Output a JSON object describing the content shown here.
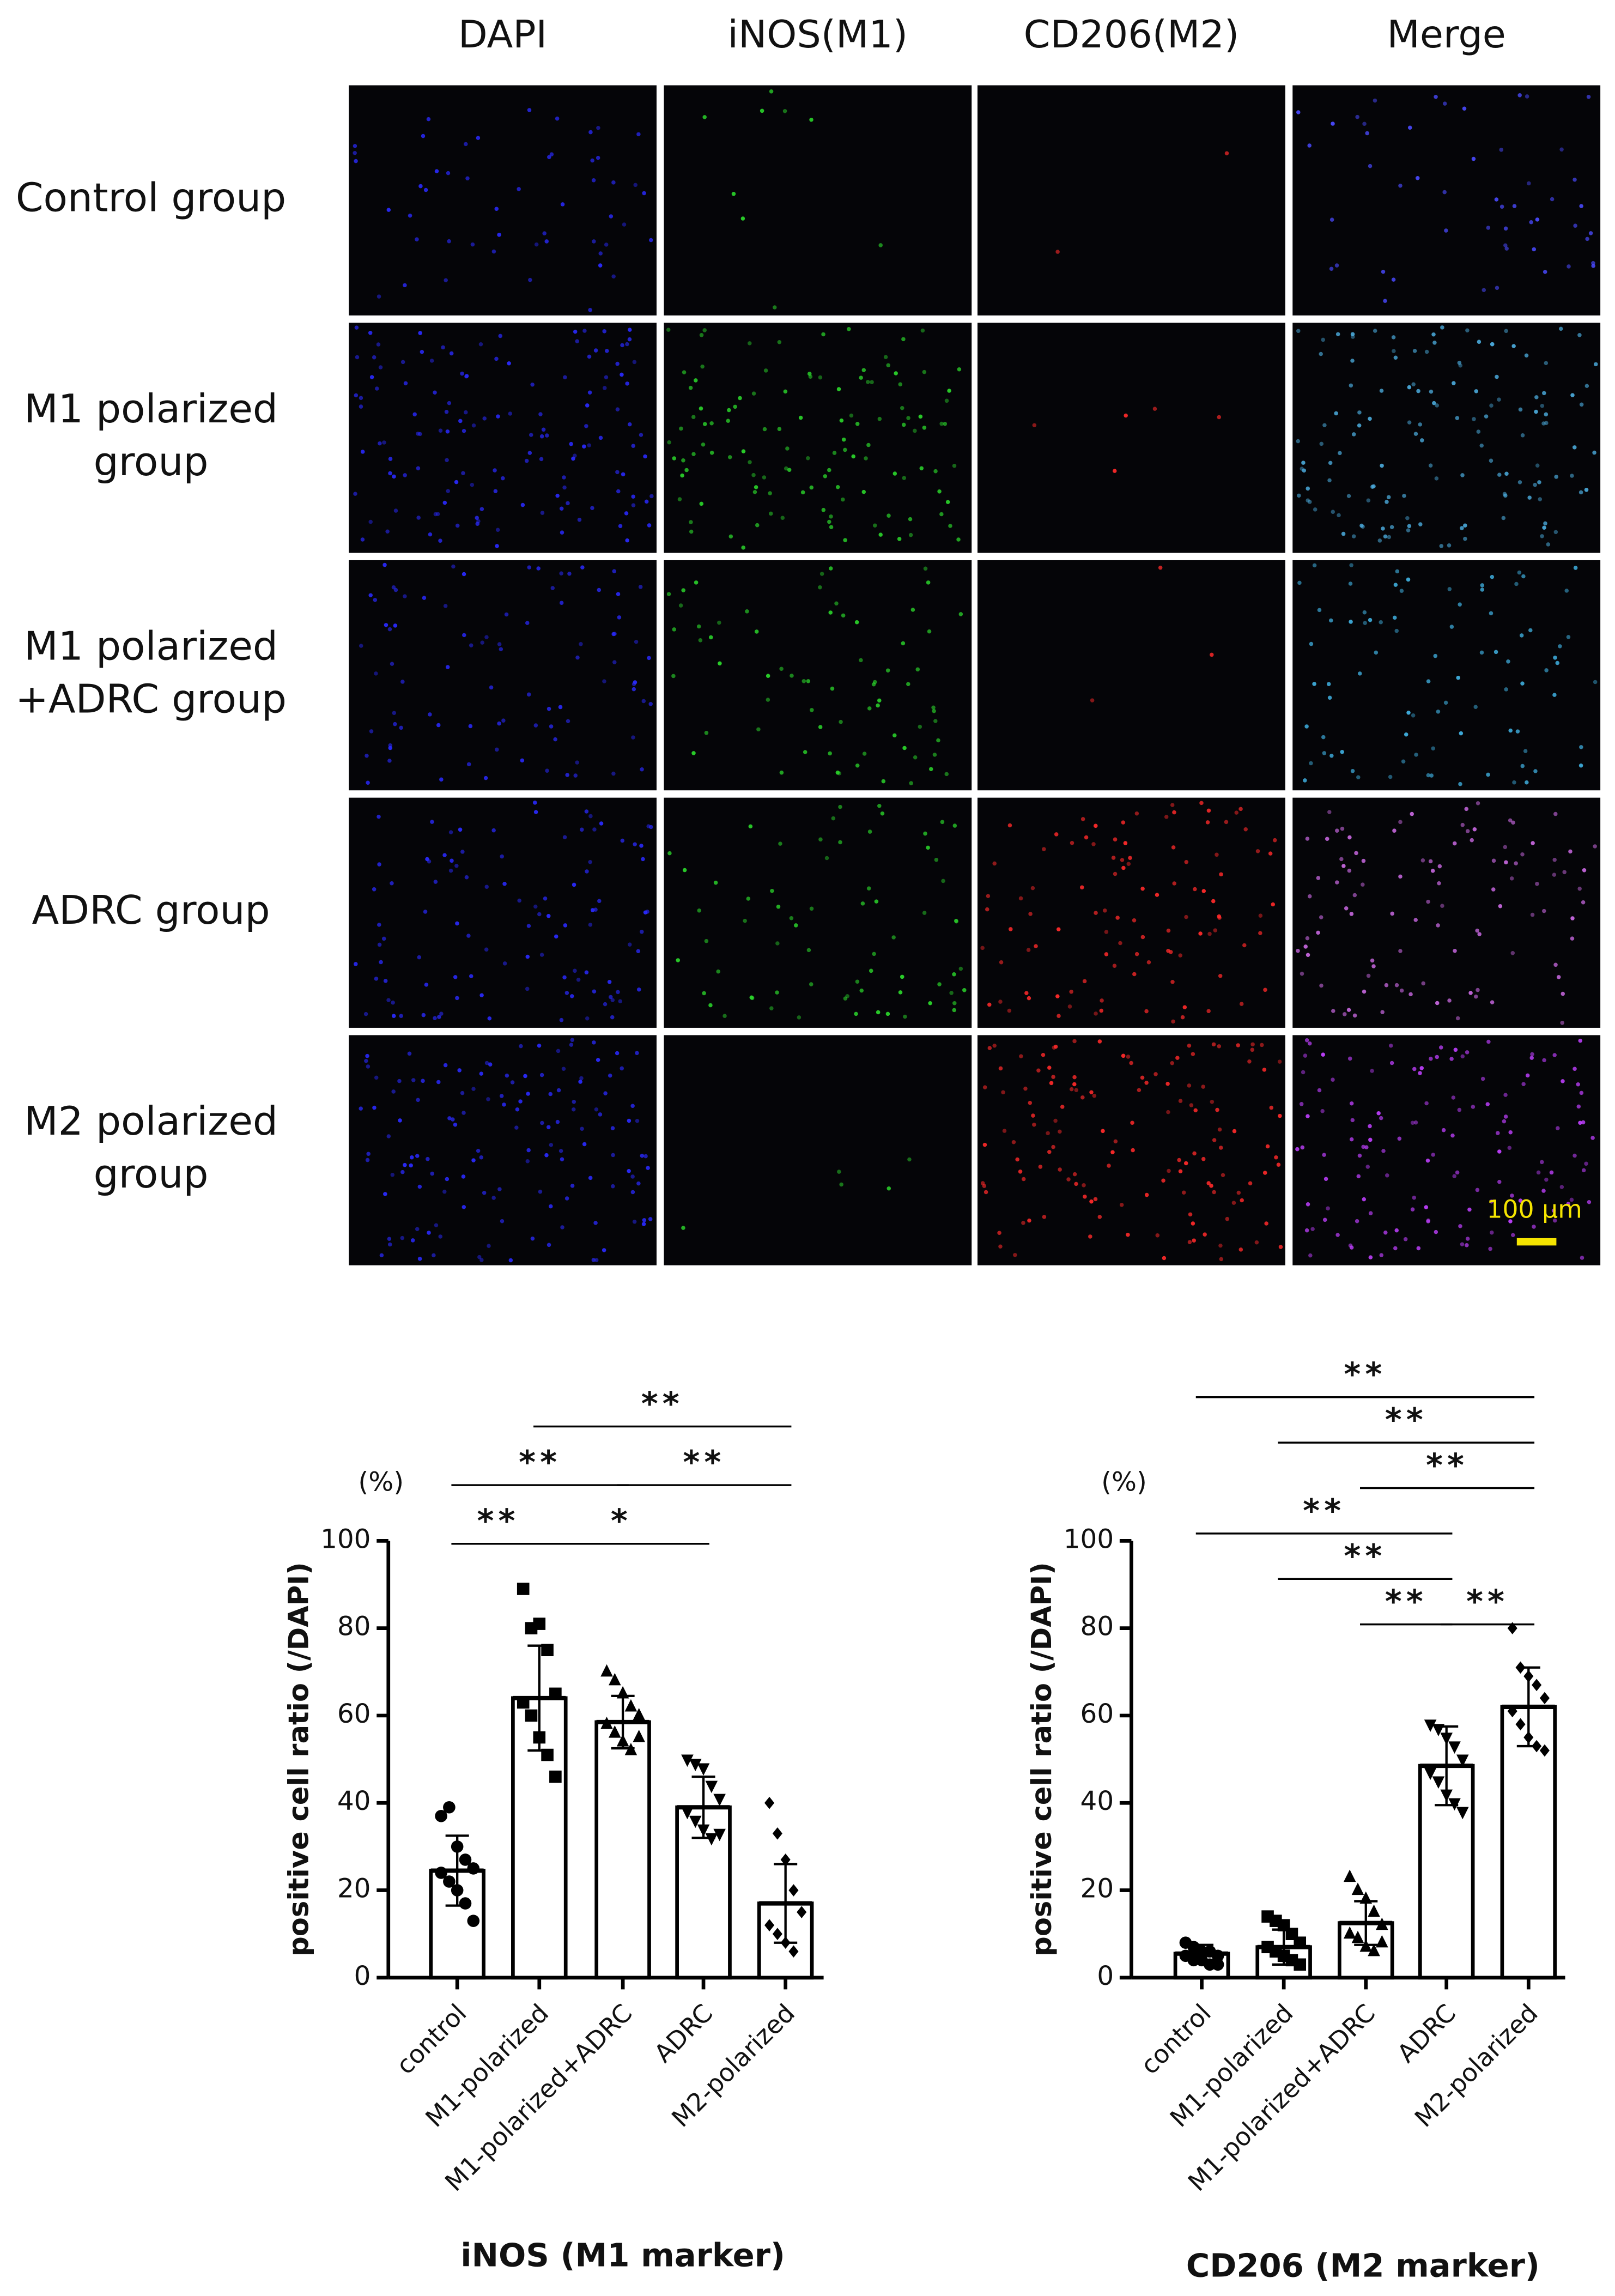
{
  "micrograph": {
    "columns": [
      "DAPI",
      "iNOS(M1)",
      "CD206(M2)",
      "Merge"
    ],
    "rows": [
      {
        "lines": [
          "Control group"
        ]
      },
      {
        "lines": [
          "M1 polarized",
          "group"
        ]
      },
      {
        "lines": [
          "M1 polarized",
          "+ADRC group"
        ]
      },
      {
        "lines": [
          "ADRC group"
        ]
      },
      {
        "lines": [
          "M2 polarized",
          "group"
        ]
      }
    ],
    "scale_bar": "100 μm"
  },
  "chart_data": [
    {
      "type": "bar",
      "title": "iNOS (M1 marker)",
      "unit": "(%)",
      "ylabel": "positive cell ratio (/DAPI)",
      "categories": [
        "control",
        "M1-polarized",
        "M1-polarized+ADRC",
        "ADRC",
        "M2-polarized"
      ],
      "values": [
        24.5,
        64,
        58.5,
        39,
        17
      ],
      "errors": [
        8,
        12,
        6,
        7,
        9
      ],
      "points": [
        [
          37,
          39,
          30,
          27,
          25,
          24,
          22,
          20,
          17,
          13
        ],
        [
          89,
          80,
          81,
          75,
          65,
          63,
          60,
          55,
          51,
          46
        ],
        [
          70,
          68,
          65,
          62,
          60,
          58,
          56,
          54,
          52,
          55
        ],
        [
          50,
          49,
          48,
          44,
          41,
          38,
          36,
          34,
          32,
          33
        ],
        [
          40,
          33,
          27,
          20,
          15,
          12,
          10,
          8,
          6
        ]
      ],
      "color": "#ffffff",
      "ylim": [
        0,
        100
      ],
      "yticks": [
        0,
        20,
        40,
        60,
        80,
        100
      ],
      "comparisons": [
        {
          "pair": [
            0,
            1
          ],
          "label": "**"
        },
        {
          "pair": [
            1,
            3
          ],
          "label": "*"
        },
        {
          "pair": [
            0,
            2
          ],
          "label": "**"
        },
        {
          "pair": [
            2,
            4
          ],
          "label": "**"
        },
        {
          "pair": [
            1,
            4
          ],
          "label": "**"
        }
      ]
    },
    {
      "type": "bar",
      "title": "CD206 (M2 marker)",
      "unit": "(%)",
      "ylabel": "positive cell ratio (/DAPI)",
      "categories": [
        "control",
        "M1-polarized",
        "M1-polarized+ADRC",
        "ADRC",
        "M2-polarized"
      ],
      "values": [
        5.5,
        7,
        12.5,
        48.5,
        62
      ],
      "errors": [
        2,
        4,
        5,
        9,
        9
      ],
      "points": [
        [
          8,
          7,
          6,
          6,
          5,
          5,
          4,
          4,
          3,
          3
        ],
        [
          14,
          13,
          12,
          10,
          8,
          7,
          6,
          5,
          4,
          3
        ],
        [
          23,
          20,
          18,
          15,
          12,
          10,
          9,
          7,
          6,
          8
        ],
        [
          58,
          57,
          55,
          53,
          50,
          47,
          45,
          42,
          40,
          38
        ],
        [
          80,
          71,
          69,
          67,
          64,
          61,
          58,
          55,
          53,
          52
        ]
      ],
      "color": "#ffffff",
      "ylim": [
        0,
        100
      ],
      "yticks": [
        0,
        20,
        40,
        60,
        80,
        100
      ],
      "comparisons": [
        {
          "pair": [
            2,
            3
          ],
          "label": "**"
        },
        {
          "pair": [
            1,
            3
          ],
          "label": "**"
        },
        {
          "pair": [
            0,
            3
          ],
          "label": "**"
        },
        {
          "pair": [
            3,
            4
          ],
          "label": "**"
        },
        {
          "pair": [
            2,
            4
          ],
          "label": "**"
        },
        {
          "pair": [
            1,
            4
          ],
          "label": "**"
        },
        {
          "pair": [
            0,
            4
          ],
          "label": "**"
        }
      ]
    }
  ]
}
